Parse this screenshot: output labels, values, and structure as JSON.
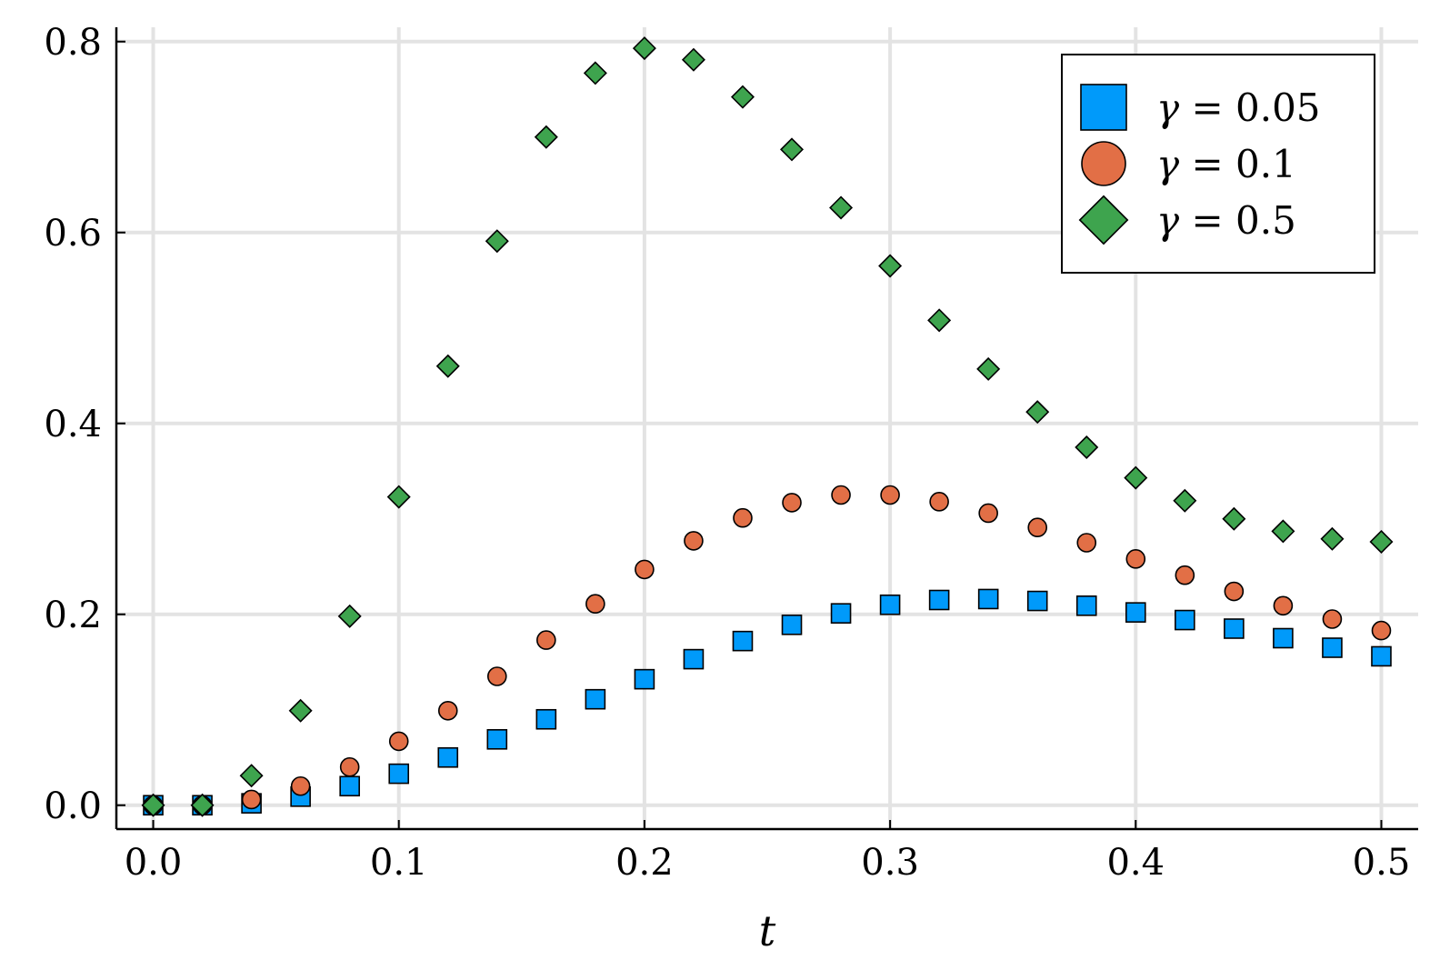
{
  "chart_data": {
    "type": "scatter",
    "title": "",
    "xlabel": "t",
    "ylabel": "",
    "xlim": [
      -0.015,
      0.515
    ],
    "ylim": [
      -0.025,
      0.815
    ],
    "xticks": [
      0.0,
      0.1,
      0.2,
      0.3,
      0.4,
      0.5
    ],
    "xtick_labels": [
      "0.0",
      "0.1",
      "0.2",
      "0.3",
      "0.4",
      "0.5"
    ],
    "yticks": [
      0.0,
      0.2,
      0.4,
      0.6,
      0.8
    ],
    "ytick_labels": [
      "0.0",
      "0.2",
      "0.4",
      "0.6",
      "0.8"
    ],
    "grid": true,
    "legend_position": "top-right",
    "x": [
      0.0,
      0.02,
      0.04,
      0.06,
      0.08,
      0.1,
      0.12,
      0.14,
      0.16,
      0.18,
      0.2,
      0.22,
      0.24,
      0.26,
      0.28,
      0.3,
      0.32,
      0.34,
      0.36,
      0.38,
      0.4,
      0.42,
      0.44,
      0.46,
      0.48,
      0.5
    ],
    "series": [
      {
        "name": "γ = 0.05",
        "symbol": "γ",
        "value_text": " = 0.05",
        "marker": "square",
        "color": "#009AFA",
        "values": [
          0.0,
          0.0,
          0.002,
          0.009,
          0.02,
          0.033,
          0.05,
          0.069,
          0.09,
          0.111,
          0.132,
          0.153,
          0.172,
          0.189,
          0.201,
          0.21,
          0.215,
          0.216,
          0.214,
          0.209,
          0.202,
          0.194,
          0.185,
          0.175,
          0.165,
          0.156
        ]
      },
      {
        "name": "γ = 0.1",
        "symbol": "γ",
        "value_text": " = 0.1",
        "marker": "circle",
        "color": "#E26F46",
        "values": [
          0.0,
          0.0,
          0.006,
          0.02,
          0.04,
          0.067,
          0.099,
          0.135,
          0.173,
          0.211,
          0.247,
          0.277,
          0.301,
          0.317,
          0.325,
          0.325,
          0.318,
          0.306,
          0.291,
          0.275,
          0.258,
          0.241,
          0.224,
          0.209,
          0.195,
          0.183
        ]
      },
      {
        "name": "γ = 0.5",
        "symbol": "γ",
        "value_text": " = 0.5",
        "marker": "diamond",
        "color": "#3EA44E",
        "values": [
          0.0,
          0.0,
          0.031,
          0.099,
          0.198,
          0.323,
          0.46,
          0.591,
          0.7,
          0.767,
          0.793,
          0.781,
          0.742,
          0.687,
          0.626,
          0.565,
          0.508,
          0.457,
          0.412,
          0.375,
          0.343,
          0.319,
          0.3,
          0.287,
          0.279,
          0.276
        ]
      }
    ]
  }
}
